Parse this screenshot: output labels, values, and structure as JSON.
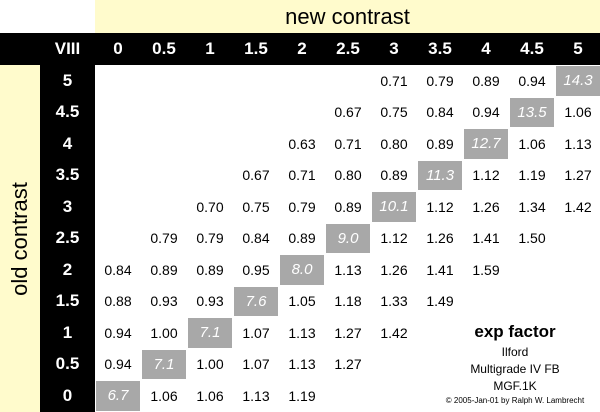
{
  "header": {
    "title": "new contrast",
    "corner": "VIII",
    "columns": [
      "0",
      "0.5",
      "1",
      "1.5",
      "2",
      "2.5",
      "3",
      "3.5",
      "4",
      "4.5",
      "5"
    ]
  },
  "side": {
    "title": "old contrast",
    "rows": [
      "5",
      "4.5",
      "4",
      "3.5",
      "3",
      "2.5",
      "2",
      "1.5",
      "1",
      "0.5",
      "0"
    ]
  },
  "table": {
    "rows": [
      [
        null,
        null,
        null,
        null,
        null,
        null,
        "0.71",
        "0.79",
        "0.89",
        "0.94",
        "14.3"
      ],
      [
        null,
        null,
        null,
        null,
        null,
        "0.67",
        "0.75",
        "0.84",
        "0.94",
        "13.5",
        "1.06"
      ],
      [
        null,
        null,
        null,
        null,
        "0.63",
        "0.71",
        "0.80",
        "0.89",
        "12.7",
        "1.06",
        "1.13"
      ],
      [
        null,
        null,
        null,
        "0.67",
        "0.71",
        "0.80",
        "0.89",
        "11.3",
        "1.12",
        "1.19",
        "1.27"
      ],
      [
        null,
        null,
        "0.70",
        "0.75",
        "0.79",
        "0.89",
        "10.1",
        "1.12",
        "1.26",
        "1.34",
        "1.42"
      ],
      [
        null,
        "0.79",
        "0.79",
        "0.84",
        "0.89",
        "9.0",
        "1.12",
        "1.26",
        "1.41",
        "1.50",
        null
      ],
      [
        "0.84",
        "0.89",
        "0.89",
        "0.95",
        "8.0",
        "1.13",
        "1.26",
        "1.41",
        "1.59",
        null,
        null
      ],
      [
        "0.88",
        "0.93",
        "0.93",
        "7.6",
        "1.05",
        "1.18",
        "1.33",
        "1.49",
        null,
        null,
        null
      ],
      [
        "0.94",
        "1.00",
        "7.1",
        "1.07",
        "1.13",
        "1.27",
        "1.42",
        null,
        null,
        null,
        null
      ],
      [
        "0.94",
        "7.1",
        "1.00",
        "1.07",
        "1.13",
        "1.27",
        null,
        null,
        null,
        null,
        null
      ],
      [
        "6.7",
        "1.06",
        "1.06",
        "1.13",
        "1.19",
        null,
        null,
        null,
        null,
        null,
        null
      ]
    ]
  },
  "legend": {
    "title": "exp factor",
    "brand": "Ilford",
    "paper": "Multigrade IV FB",
    "code": "MGF.1K",
    "credit": "© 2005-Jan-01  by Ralph W. Lambrecht"
  }
}
